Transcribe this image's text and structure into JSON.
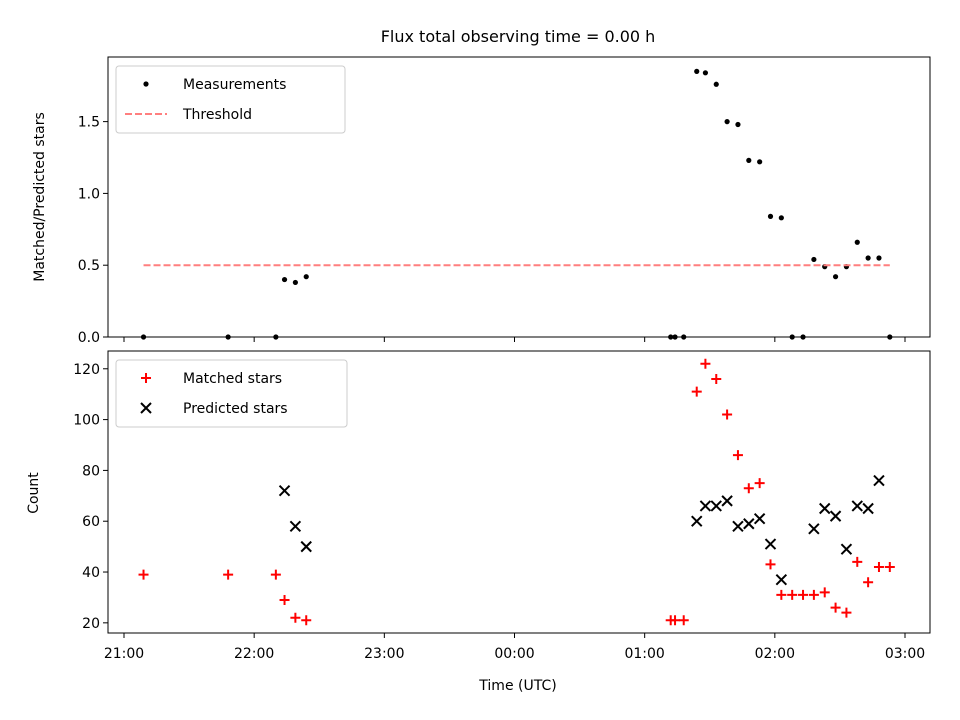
{
  "chart_data": [
    {
      "type": "scatter",
      "title": "Flux total observing time = 0.00 h",
      "xlabel": "",
      "ylabel": "Matched/Predicted stars",
      "xlim": [
        "21:00",
        "03:00"
      ],
      "ylim": [
        0,
        1.95
      ],
      "yticks": [
        0.0,
        0.5,
        1.0,
        1.5
      ],
      "ytick_labels": [
        "0.0",
        "0.5",
        "1.0",
        "1.5"
      ],
      "legend_position": "top-left",
      "grid": false,
      "series": [
        {
          "name": "Measurements",
          "marker": "dot",
          "color": "#000000",
          "points": [
            {
              "x": "21:09",
              "y": 0.0
            },
            {
              "x": "21:48",
              "y": 0.0
            },
            {
              "x": "22:10",
              "y": 0.0
            },
            {
              "x": "22:14",
              "y": 0.4
            },
            {
              "x": "22:19",
              "y": 0.38
            },
            {
              "x": "22:24",
              "y": 0.42
            },
            {
              "x": "01:12",
              "y": 0.0
            },
            {
              "x": "01:14",
              "y": 0.0
            },
            {
              "x": "01:18",
              "y": 0.0
            },
            {
              "x": "01:24",
              "y": 1.85
            },
            {
              "x": "01:28",
              "y": 1.84
            },
            {
              "x": "01:33",
              "y": 1.76
            },
            {
              "x": "01:38",
              "y": 1.5
            },
            {
              "x": "01:43",
              "y": 1.48
            },
            {
              "x": "01:48",
              "y": 1.23
            },
            {
              "x": "01:53",
              "y": 1.22
            },
            {
              "x": "01:58",
              "y": 0.84
            },
            {
              "x": "02:03",
              "y": 0.83
            },
            {
              "x": "02:08",
              "y": 0.0
            },
            {
              "x": "02:13",
              "y": 0.0
            },
            {
              "x": "02:18",
              "y": 0.54
            },
            {
              "x": "02:23",
              "y": 0.49
            },
            {
              "x": "02:28",
              "y": 0.42
            },
            {
              "x": "02:33",
              "y": 0.49
            },
            {
              "x": "02:38",
              "y": 0.66
            },
            {
              "x": "02:43",
              "y": 0.55
            },
            {
              "x": "02:48",
              "y": 0.55
            },
            {
              "x": "02:53",
              "y": 0.0
            }
          ]
        },
        {
          "name": "Threshold",
          "style": "dashed",
          "color": "#ff7f7f",
          "points": [
            {
              "x": "21:09",
              "y": 0.5
            },
            {
              "x": "02:53",
              "y": 0.5
            }
          ]
        }
      ]
    },
    {
      "type": "scatter",
      "title": "",
      "xlabel": "Time (UTC)",
      "ylabel": "Count",
      "xlim": [
        "21:00",
        "03:00"
      ],
      "ylim": [
        16,
        127
      ],
      "xticks": [
        "21:00",
        "22:00",
        "23:00",
        "00:00",
        "01:00",
        "02:00",
        "03:00"
      ],
      "yticks": [
        20,
        40,
        60,
        80,
        100,
        120
      ],
      "ytick_labels": [
        "20",
        "40",
        "60",
        "80",
        "100",
        "120"
      ],
      "legend_position": "top-left",
      "grid": false,
      "series": [
        {
          "name": "Matched stars",
          "marker": "plus",
          "color": "#ff0000",
          "points": [
            {
              "x": "21:09",
              "y": 39
            },
            {
              "x": "21:48",
              "y": 39
            },
            {
              "x": "22:10",
              "y": 39
            },
            {
              "x": "22:14",
              "y": 29
            },
            {
              "x": "22:19",
              "y": 22
            },
            {
              "x": "22:24",
              "y": 21
            },
            {
              "x": "01:12",
              "y": 21
            },
            {
              "x": "01:14",
              "y": 21
            },
            {
              "x": "01:18",
              "y": 21
            },
            {
              "x": "01:24",
              "y": 111
            },
            {
              "x": "01:28",
              "y": 122
            },
            {
              "x": "01:33",
              "y": 116
            },
            {
              "x": "01:38",
              "y": 102
            },
            {
              "x": "01:43",
              "y": 86
            },
            {
              "x": "01:48",
              "y": 73
            },
            {
              "x": "01:53",
              "y": 75
            },
            {
              "x": "01:58",
              "y": 43
            },
            {
              "x": "02:03",
              "y": 31
            },
            {
              "x": "02:08",
              "y": 31
            },
            {
              "x": "02:13",
              "y": 31
            },
            {
              "x": "02:18",
              "y": 31
            },
            {
              "x": "02:23",
              "y": 32
            },
            {
              "x": "02:28",
              "y": 26
            },
            {
              "x": "02:33",
              "y": 24
            },
            {
              "x": "02:38",
              "y": 44
            },
            {
              "x": "02:43",
              "y": 36
            },
            {
              "x": "02:48",
              "y": 42
            },
            {
              "x": "02:53",
              "y": 42
            }
          ]
        },
        {
          "name": "Predicted stars",
          "marker": "x",
          "color": "#000000",
          "points": [
            {
              "x": "22:14",
              "y": 72
            },
            {
              "x": "22:19",
              "y": 58
            },
            {
              "x": "22:24",
              "y": 50
            },
            {
              "x": "01:24",
              "y": 60
            },
            {
              "x": "01:28",
              "y": 66
            },
            {
              "x": "01:33",
              "y": 66
            },
            {
              "x": "01:38",
              "y": 68
            },
            {
              "x": "01:43",
              "y": 58
            },
            {
              "x": "01:48",
              "y": 59
            },
            {
              "x": "01:53",
              "y": 61
            },
            {
              "x": "01:58",
              "y": 51
            },
            {
              "x": "02:03",
              "y": 37
            },
            {
              "x": "02:18",
              "y": 57
            },
            {
              "x": "02:23",
              "y": 65
            },
            {
              "x": "02:28",
              "y": 62
            },
            {
              "x": "02:33",
              "y": 49
            },
            {
              "x": "02:38",
              "y": 66
            },
            {
              "x": "02:43",
              "y": 65
            },
            {
              "x": "02:48",
              "y": 76
            }
          ]
        }
      ]
    }
  ]
}
